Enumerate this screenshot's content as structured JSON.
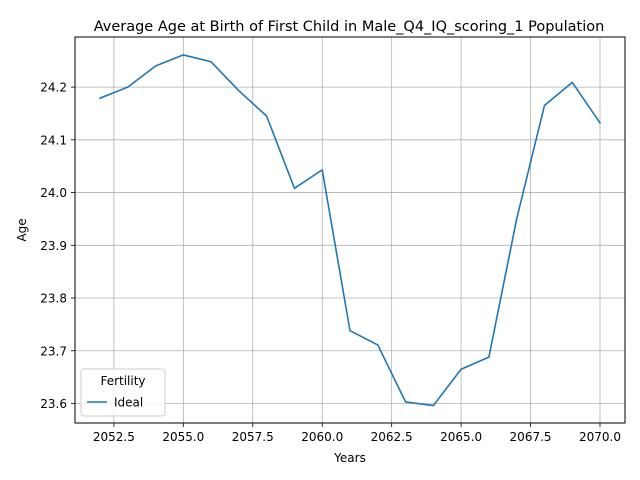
{
  "chart_data": {
    "type": "line",
    "title": "Average Age at Birth of First Child in Male_Q4_IQ_scoring_1 Population",
    "xlabel": "Years",
    "ylabel": "Age",
    "x": [
      2052,
      2053,
      2054,
      2055,
      2056,
      2057,
      2058,
      2059,
      2060,
      2061,
      2062,
      2063,
      2064,
      2065,
      2066,
      2067,
      2068,
      2069,
      2070
    ],
    "series": [
      {
        "name": "Ideal",
        "color": "#1f77b4",
        "values": [
          24.179,
          24.2,
          24.24,
          24.261,
          24.248,
          24.193,
          24.145,
          24.008,
          24.043,
          23.738,
          23.711,
          23.603,
          23.596,
          23.665,
          23.688,
          23.95,
          24.165,
          24.209,
          24.132
        ]
      }
    ],
    "xlim": [
      2051.1,
      2070.9
    ],
    "ylim": [
      23.563,
      24.295
    ],
    "xticks": [
      2052.5,
      2055.0,
      2057.5,
      2060.0,
      2062.5,
      2065.0,
      2067.5,
      2070.0
    ],
    "xtick_labels": [
      "2052.5",
      "2055.0",
      "2057.5",
      "2060.0",
      "2062.5",
      "2065.0",
      "2067.5",
      "2070.0"
    ],
    "yticks": [
      23.6,
      23.7,
      23.8,
      23.9,
      24.0,
      24.1,
      24.2
    ],
    "ytick_labels": [
      "23.6",
      "23.7",
      "23.8",
      "23.9",
      "24.0",
      "24.1",
      "24.2"
    ],
    "grid": true,
    "legend": {
      "title": "Fertility",
      "placement": "lower-left"
    }
  }
}
